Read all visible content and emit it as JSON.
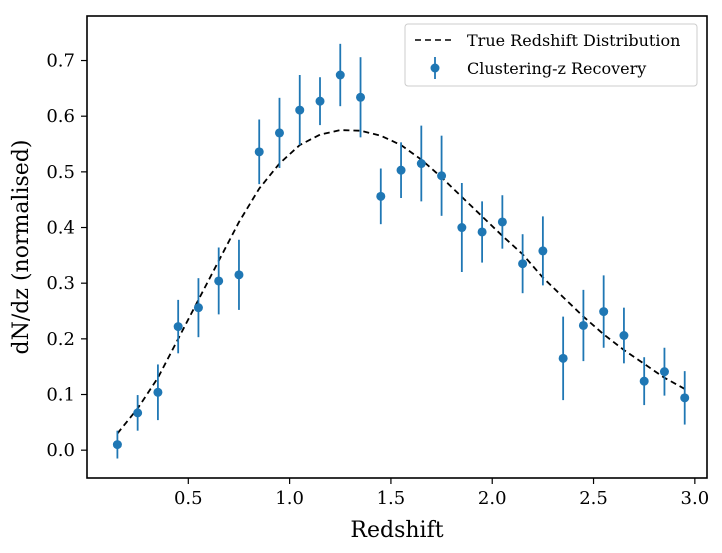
{
  "chart_data": {
    "type": "line",
    "title": "",
    "xlabel": "Redshift",
    "ylabel": "dN/dz (normalised)",
    "xlim": [
      0.0,
      3.06
    ],
    "ylim": [
      -0.05,
      0.78
    ],
    "x_ticks": [
      0.5,
      1.0,
      1.5,
      2.0,
      2.5,
      3.0
    ],
    "x_tick_labels": [
      "0.5",
      "1.0",
      "1.5",
      "2.0",
      "2.5",
      "3.0"
    ],
    "y_ticks": [
      0.0,
      0.1,
      0.2,
      0.3,
      0.4,
      0.5,
      0.6,
      0.7
    ],
    "y_tick_labels": [
      "0.0",
      "0.1",
      "0.2",
      "0.3",
      "0.4",
      "0.5",
      "0.6",
      "0.7"
    ],
    "grid": false,
    "legend_position": "top-right",
    "colors": {
      "true_line": "#000000",
      "points": "#1f77b4"
    },
    "series": [
      {
        "name": "True Redshift Distribution",
        "style": "dashed",
        "x": [
          0.15,
          0.25,
          0.35,
          0.45,
          0.55,
          0.65,
          0.75,
          0.85,
          0.95,
          1.05,
          1.15,
          1.25,
          1.35,
          1.45,
          1.55,
          1.65,
          1.75,
          1.85,
          1.95,
          2.05,
          2.15,
          2.25,
          2.35,
          2.45,
          2.55,
          2.65,
          2.75,
          2.85,
          2.95
        ],
        "y": [
          0.03,
          0.075,
          0.13,
          0.2,
          0.27,
          0.34,
          0.41,
          0.47,
          0.515,
          0.548,
          0.567,
          0.575,
          0.574,
          0.565,
          0.548,
          0.522,
          0.49,
          0.455,
          0.42,
          0.385,
          0.352,
          0.31,
          0.275,
          0.24,
          0.208,
          0.18,
          0.155,
          0.13,
          0.11
        ]
      },
      {
        "name": "Clustering-z Recovery",
        "style": "errorbar",
        "x": [
          0.15,
          0.25,
          0.35,
          0.45,
          0.55,
          0.65,
          0.75,
          0.85,
          0.95,
          1.05,
          1.15,
          1.25,
          1.35,
          1.45,
          1.55,
          1.65,
          1.75,
          1.85,
          1.95,
          2.05,
          2.15,
          2.25,
          2.35,
          2.45,
          2.55,
          2.65,
          2.75,
          2.85,
          2.95
        ],
        "y": [
          0.01,
          0.067,
          0.104,
          0.222,
          0.256,
          0.304,
          0.315,
          0.536,
          0.57,
          0.611,
          0.627,
          0.674,
          0.634,
          0.456,
          0.503,
          0.515,
          0.493,
          0.4,
          0.392,
          0.41,
          0.335,
          0.358,
          0.165,
          0.224,
          0.249,
          0.206,
          0.124,
          0.141,
          0.094
        ],
        "yerr": [
          0.025,
          0.032,
          0.05,
          0.048,
          0.053,
          0.06,
          0.063,
          0.058,
          0.063,
          0.063,
          0.043,
          0.056,
          0.072,
          0.05,
          0.05,
          0.068,
          0.072,
          0.08,
          0.055,
          0.048,
          0.053,
          0.062,
          0.075,
          0.064,
          0.065,
          0.05,
          0.043,
          0.043,
          0.048
        ]
      }
    ]
  }
}
